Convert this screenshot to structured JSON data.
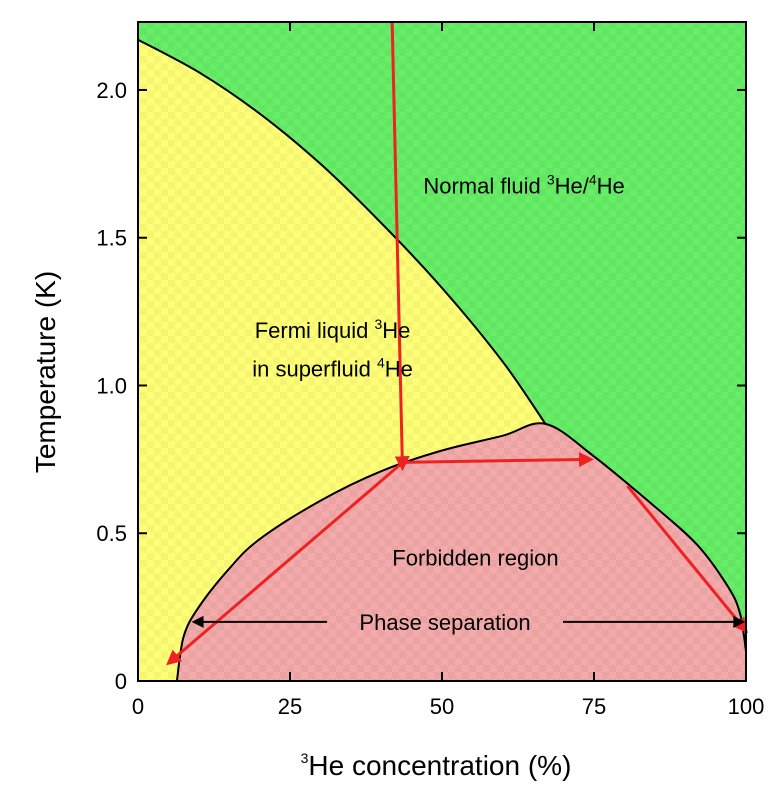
{
  "chart_data": {
    "type": "area",
    "title": "",
    "xlabel": {
      "sup": "3",
      "text": "He concentration (%)"
    },
    "ylabel": "Temperature (K)",
    "xlim": [
      0,
      100
    ],
    "ylim": [
      0,
      2.23
    ],
    "xticks": [
      0,
      25,
      50,
      75,
      100
    ],
    "xtick_labels": [
      "0",
      "25",
      "50",
      "75",
      "100"
    ],
    "yticks": [
      0,
      0.5,
      1.0,
      1.5,
      2.0
    ],
    "ytick_labels": [
      "0",
      "0.5",
      "1.0",
      "1.5",
      "2.0"
    ],
    "grid": false,
    "colors": {
      "normal_fluid": "#66ee66",
      "fermi_liquid": "#ffff77",
      "forbidden": "#f4aaaa",
      "boundary": "#000000",
      "arrow": "#ee2222"
    },
    "lambda_line": [
      [
        0,
        2.17
      ],
      [
        10,
        2.06
      ],
      [
        20,
        1.92
      ],
      [
        30,
        1.75
      ],
      [
        40,
        1.55
      ],
      [
        50,
        1.33
      ],
      [
        60,
        1.08
      ],
      [
        67,
        0.87
      ]
    ],
    "phase_separation_curve": [
      [
        6.4,
        0
      ],
      [
        7.5,
        0.15
      ],
      [
        10,
        0.25
      ],
      [
        15,
        0.38
      ],
      [
        20,
        0.48
      ],
      [
        30,
        0.61
      ],
      [
        40,
        0.71
      ],
      [
        50,
        0.78
      ],
      [
        60,
        0.83
      ],
      [
        67,
        0.87
      ],
      [
        75,
        0.76
      ],
      [
        85,
        0.59
      ],
      [
        92,
        0.46
      ],
      [
        97,
        0.32
      ],
      [
        99,
        0.23
      ],
      [
        100,
        0.1
      ],
      [
        100,
        0
      ]
    ],
    "regions": [
      {
        "name": "normal-fluid",
        "text": "Normal fluid ",
        "sup1": "3",
        "mid": "He/",
        "sup2": "4",
        "end": "He",
        "x": 63.5,
        "y": 1.65
      },
      {
        "name": "fermi-liquid-line1",
        "text": "Fermi liquid ",
        "sup1": "3",
        "end": "He",
        "x": 32,
        "y": 1.16
      },
      {
        "name": "fermi-liquid-line2",
        "text": "in superfluid ",
        "sup1": "4",
        "end": "He",
        "x": 32,
        "y": 1.03
      },
      {
        "name": "forbidden-region",
        "text": "Forbidden region",
        "x": 55.5,
        "y": 0.39
      }
    ],
    "annotations": [
      {
        "text": "Phase separation",
        "x": 50.5,
        "y": 0.2,
        "arrow_left_to": [
          9.2,
          0.2
        ],
        "arrow_right_to": [
          99.5,
          0.2
        ]
      }
    ],
    "cooling_path": [
      {
        "from": [
          41.8,
          2.23
        ],
        "to": [
          43.5,
          0.72
        ]
      },
      {
        "from": [
          43.5,
          0.74
        ],
        "to": [
          74.5,
          0.75
        ]
      },
      {
        "from": [
          43,
          0.73
        ],
        "to": [
          5,
          0.06
        ]
      },
      {
        "from": [
          80.5,
          0.66
        ],
        "to": [
          100,
          0.17
        ]
      }
    ]
  }
}
